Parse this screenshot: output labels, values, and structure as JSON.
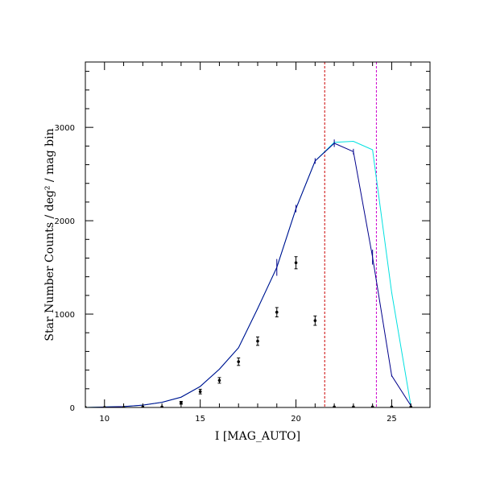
{
  "chart_data": {
    "type": "line",
    "xlabel": "I [MAG_AUTO]",
    "ylabel": "Star Number Counts / deg² / mag bin",
    "xlim": [
      9,
      27
    ],
    "ylim": [
      0,
      3700
    ],
    "x_ticks": [
      10,
      15,
      20,
      25
    ],
    "y_ticks": [
      0,
      1000,
      2000,
      3000
    ],
    "x_tick_labels": [
      "10",
      "15",
      "20",
      "25"
    ],
    "y_tick_labels": [
      "0",
      "1000",
      "2000",
      "3000"
    ],
    "grid": false,
    "series": [
      {
        "color": "#00e0e0",
        "x": [
          9,
          10,
          11,
          12,
          13,
          14,
          15,
          16,
          17,
          18,
          19,
          20,
          21,
          22,
          23,
          24,
          25,
          26
        ],
        "values": [
          0,
          5,
          10,
          25,
          55,
          110,
          225,
          410,
          640,
          1060,
          1500,
          2130,
          2640,
          2840,
          2850,
          2760,
          1230,
          20
        ]
      },
      {
        "color": "#00008b",
        "x": [
          9,
          10,
          11,
          12,
          13,
          14,
          15,
          16,
          17,
          18,
          19,
          20,
          21,
          22,
          23,
          24,
          25,
          26
        ],
        "values": [
          0,
          5,
          10,
          25,
          55,
          110,
          225,
          410,
          640,
          1060,
          1500,
          2130,
          2640,
          2830,
          2740,
          1610,
          340,
          20
        ]
      },
      {
        "color": "#000000",
        "x": [
          9,
          10,
          11,
          12,
          13,
          14,
          15,
          16,
          17,
          18,
          19,
          20,
          21,
          22,
          23,
          24,
          25,
          26
        ],
        "values": [
          0,
          0,
          0,
          5,
          5,
          50,
          170,
          290,
          490,
          710,
          1020,
          1550,
          930,
          5,
          5,
          5,
          5,
          5
        ],
        "errors": [
          0,
          0,
          0,
          5,
          5,
          15,
          25,
          30,
          40,
          45,
          50,
          65,
          50,
          5,
          5,
          5,
          5,
          5
        ]
      }
    ],
    "vertical_lines": [
      {
        "x": 21.5,
        "color": "#cc0000"
      },
      {
        "x": 24.2,
        "color": "#cc00cc"
      }
    ]
  }
}
